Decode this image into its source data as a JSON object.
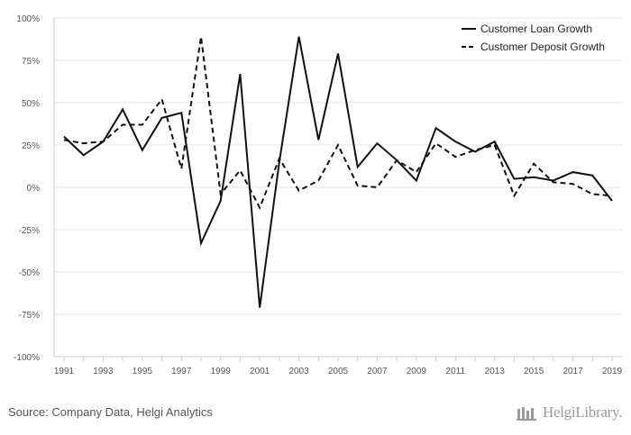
{
  "chart_data": {
    "type": "line",
    "x": [
      1991,
      1992,
      1993,
      1994,
      1995,
      1996,
      1997,
      1998,
      1999,
      2000,
      2001,
      2002,
      2003,
      2004,
      2005,
      2006,
      2007,
      2008,
      2009,
      2010,
      2011,
      2012,
      2013,
      2014,
      2015,
      2016,
      2017,
      2018,
      2019
    ],
    "x_tick_labels": [
      "1991",
      "1993",
      "1995",
      "1997",
      "1999",
      "2001",
      "2003",
      "2005",
      "2007",
      "2009",
      "2011",
      "2013",
      "2015",
      "2017",
      "2019"
    ],
    "y_tick_labels": [
      "100%",
      "75%",
      "50%",
      "25%",
      "0%",
      "-25%",
      "-50%",
      "-75%",
      "-100%"
    ],
    "y_ticks": [
      100,
      75,
      50,
      25,
      0,
      -25,
      -50,
      -75,
      -100
    ],
    "ylim": [
      -100,
      100
    ],
    "grid": true,
    "legend_position": "top-right",
    "series": [
      {
        "name": "Customer Loan Growth",
        "style": "solid",
        "color": "#111111",
        "values": [
          30,
          19,
          27,
          46,
          22,
          41,
          44,
          -33,
          -8,
          67,
          -71,
          15,
          89,
          28,
          79,
          12,
          26,
          16,
          4,
          35,
          27,
          21,
          27,
          5,
          6,
          4,
          9,
          7,
          -8
        ]
      },
      {
        "name": "Customer Deposit Growth",
        "style": "dashed",
        "color": "#111111",
        "values": [
          28,
          26,
          27,
          37,
          37,
          52,
          11,
          89,
          -4,
          10,
          -12,
          17,
          -2,
          4,
          25,
          1,
          0,
          16,
          9,
          26,
          18,
          22,
          25,
          -5,
          14,
          3,
          2,
          -4,
          -5
        ]
      }
    ]
  },
  "footer": {
    "source": "Source: Company Data, Helgi Analytics",
    "brand": "HelgiLibrary."
  },
  "colors": {
    "grid": "#e6e6e6",
    "axis": "#cccccc",
    "text": "#555555",
    "brand": "#9a9a9a"
  }
}
